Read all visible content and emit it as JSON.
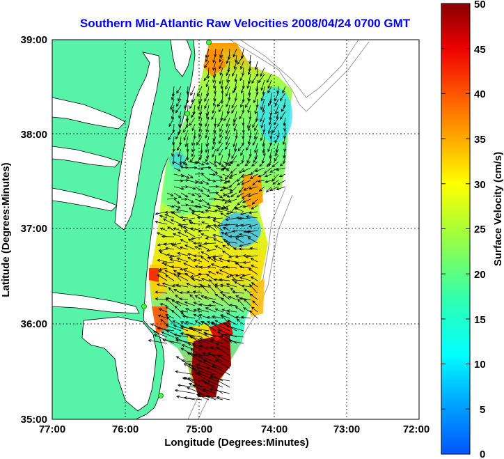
{
  "title": "Southern Mid-Atlantic Raw Velocities 2008/04/24 0700 GMT",
  "map": {
    "x_axis": {
      "label": "Longitude (Degrees:Minutes)",
      "ticks": [
        "77:00",
        "76:00",
        "75:00",
        "74:00",
        "73:00",
        "72:00"
      ]
    },
    "y_axis": {
      "label": "Latitude (Degrees:Minutes)",
      "ticks": [
        "39:00",
        "38:00",
        "37:00",
        "36:00",
        "35:00"
      ]
    },
    "land_color": "#57f3a8",
    "grid": "dotted"
  },
  "colorbar": {
    "label": "Surface Velocity (cm/s)",
    "ticks": [
      "50",
      "45",
      "40",
      "35",
      "30",
      "25",
      "20",
      "15",
      "10",
      "5",
      "0"
    ],
    "range": [
      0,
      50
    ],
    "colormap": "jet"
  }
}
